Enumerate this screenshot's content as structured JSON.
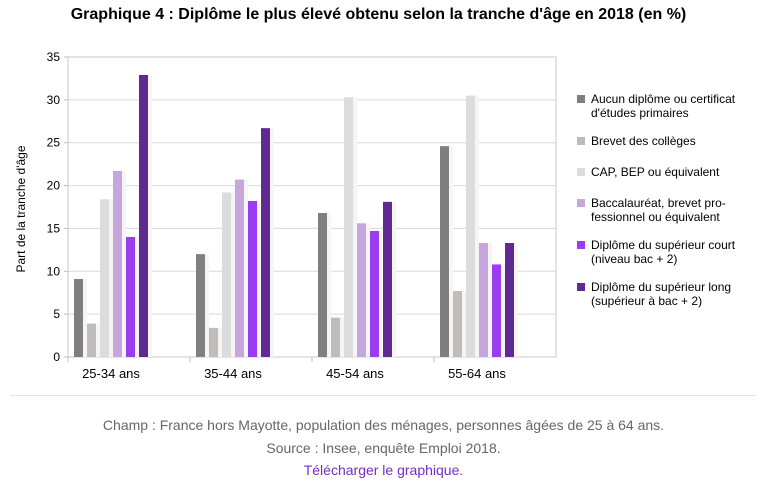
{
  "chart_data": {
    "type": "bar",
    "title": "Graphique 4 : Diplôme le plus élevé obtenu selon la tranche d'âge en 2018 (en %)",
    "ylabel": "Part de la tranche d'âge",
    "xlabel": "",
    "ylim": [
      0,
      35
    ],
    "yticks": [
      0,
      5,
      10,
      15,
      20,
      25,
      30,
      35
    ],
    "grid": true,
    "legend_position": "right",
    "categories": [
      "25-34 ans",
      "35-44 ans",
      "45-54 ans",
      "55-64 ans"
    ],
    "series": [
      {
        "name": "Aucun diplôme ou certificat d'études primaires",
        "legend_lines": [
          "Aucun diplôme ou certificat",
          "d'études primaires"
        ],
        "color": "#7f7f7f",
        "values": [
          9.1,
          12.0,
          16.8,
          24.6
        ]
      },
      {
        "name": "Brevet des collèges",
        "legend_lines": [
          "Brevet des collèges"
        ],
        "color": "#c0bcbc",
        "values": [
          3.9,
          3.4,
          4.6,
          7.7
        ]
      },
      {
        "name": "CAP, BEP ou équivalent",
        "legend_lines": [
          "CAP, BEP ou équivalent"
        ],
        "color": "#dcdcdc",
        "values": [
          18.4,
          19.2,
          30.3,
          30.5
        ]
      },
      {
        "name": "Baccalauréat, brevet professionnel ou équivalent",
        "legend_lines": [
          "Baccalauréat, brevet pro-",
          "fessionnel ou équivalent"
        ],
        "color": "#c7a6de",
        "values": [
          21.7,
          20.7,
          15.6,
          13.3
        ]
      },
      {
        "name": "Diplôme du supérieur court (niveau bac + 2)",
        "legend_lines": [
          "Diplôme du supérieur court",
          "(niveau bac + 2)"
        ],
        "color": "#9a3cf0",
        "values": [
          14.0,
          18.2,
          14.7,
          10.8
        ]
      },
      {
        "name": "Diplôme du supérieur long (supérieur à bac + 2)",
        "legend_lines": [
          "Diplôme du supérieur long",
          "(supérieur à bac + 2)"
        ],
        "color": "#5f2a92",
        "values": [
          32.9,
          26.7,
          18.1,
          13.3
        ]
      }
    ]
  },
  "footer": {
    "scope": "Champ : France hors Mayotte, population des ménages, personnes âgées de 25 à 64 ans.",
    "source": "Source : Insee, enquête Emploi 2018.",
    "download_label": "Télécharger le graphique",
    "download_suffix": "."
  }
}
